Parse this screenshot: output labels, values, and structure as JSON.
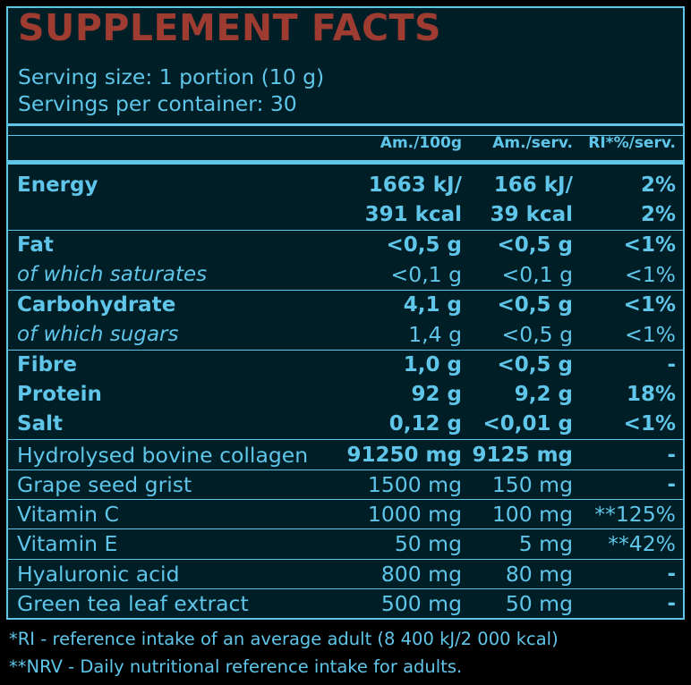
{
  "title": "SUPPLEMENT FACTS",
  "serving_size": "Serving size: 1  portion (10 g)",
  "servings_per_container": "Servings per container: 30",
  "columns": [
    "Am./100g",
    "Am./serv.",
    "RI*%/serv."
  ],
  "energy": {
    "label": "Energy",
    "kj": [
      "1663 kJ/",
      "166 kJ/",
      "2%"
    ],
    "kcal": [
      "391 kcal",
      "39 kcal",
      "2%"
    ]
  },
  "rows": [
    {
      "label": "Fat",
      "a": "<0,5 g",
      "b": "<0,5 g",
      "c": "<1%",
      "style": "bold"
    },
    {
      "label": "of which saturates",
      "a": "<0,1 g",
      "b": "<0,1 g",
      "c": "<1%",
      "style": "ital"
    },
    {
      "label": "Carbohydrate",
      "a": "4,1 g",
      "b": "<0,5 g",
      "c": "<1%",
      "style": "bold"
    },
    {
      "label": "of which sugars",
      "a": "1,4 g",
      "b": "<0,5 g",
      "c": "<1%",
      "style": "ital"
    },
    {
      "label": "Fibre",
      "a": "1,0 g",
      "b": "<0,5 g",
      "c": "-",
      "style": "bold"
    },
    {
      "label": "Protein",
      "a": "92 g",
      "b": "9,2 g",
      "c": "18%",
      "style": "bold"
    },
    {
      "label": "Salt",
      "a": "0,12 g",
      "b": "<0,01 g",
      "c": "<1%",
      "style": "bold"
    },
    {
      "label": "Hydrolysed bovine collagen",
      "a": "91250 mg",
      "b": "9125 mg",
      "c": "-",
      "style": "reg-bold"
    },
    {
      "label": "Grape seed grist",
      "a": "1500 mg",
      "b": "150 mg",
      "c": "-",
      "style": "reg"
    },
    {
      "label": "Vitamin C",
      "a": "1000 mg",
      "b": "100 mg",
      "c": "**125%",
      "style": "reg"
    },
    {
      "label": "Vitamin E",
      "a": "50 mg",
      "b": "5 mg",
      "c": "**42%",
      "style": "reg"
    },
    {
      "label": "Hyaluronic acid",
      "a": "800 mg",
      "b": "80 mg",
      "c": "-",
      "style": "reg"
    },
    {
      "label": "Green tea leaf extract",
      "a": "500 mg",
      "b": "50 mg",
      "c": "-",
      "style": "reg"
    }
  ],
  "footnotes": [
    "*RI - reference intake of an average adult (8 400 kJ/2 000 kcal)",
    "**NRV - Daily nutritional reference intake for adults."
  ]
}
